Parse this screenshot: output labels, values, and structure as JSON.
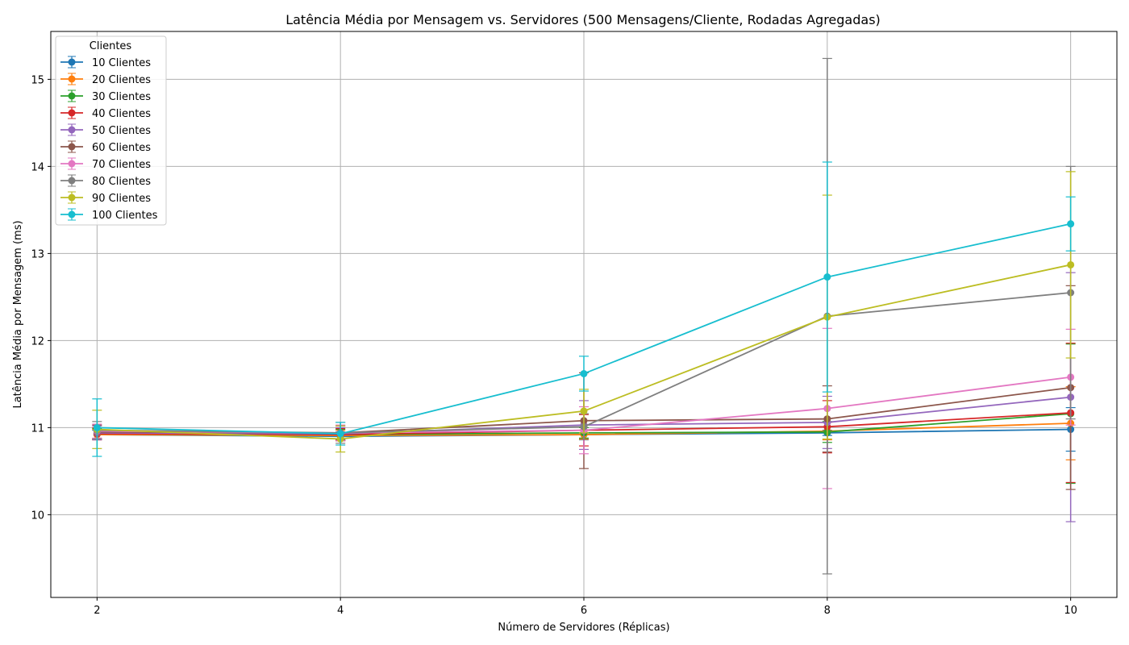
{
  "chart_data": {
    "type": "line",
    "title": "Latência Média por Mensagem vs. Servidores (500 Mensagens/Cliente, Rodadas Agregadas)",
    "xlabel": "Número de Servidores (Réplicas)",
    "ylabel": "Latência Média por Mensagem (ms)",
    "x": [
      2,
      4,
      6,
      8,
      10
    ],
    "xlim": [
      1.62,
      10.38
    ],
    "ylim": [
      9.05,
      15.55
    ],
    "xticks": [
      2,
      4,
      6,
      8,
      10
    ],
    "yticks": [
      10,
      11,
      12,
      13,
      14,
      15
    ],
    "grid": true,
    "legend": {
      "title": "Clientes",
      "position": "upper-left"
    },
    "series": [
      {
        "name": "10 Clientes",
        "color": "#1f77b4",
        "values": [
          10.92,
          10.9,
          10.92,
          10.94,
          10.98
        ],
        "errors": [
          0.05,
          0.05,
          0.05,
          0.03,
          0.25
        ]
      },
      {
        "name": "20 Clientes",
        "color": "#ff7f0e",
        "values": [
          10.92,
          10.91,
          10.92,
          10.96,
          11.05
        ],
        "errors": [
          0.06,
          0.06,
          0.05,
          0.1,
          0.42
        ]
      },
      {
        "name": "30 Clientes",
        "color": "#2ca02c",
        "values": [
          10.93,
          10.92,
          10.94,
          10.95,
          11.16
        ],
        "errors": [
          0.06,
          0.06,
          0.06,
          0.12,
          0.8
        ]
      },
      {
        "name": "40 Clientes",
        "color": "#d62728",
        "values": [
          10.93,
          10.92,
          10.97,
          11.01,
          11.17
        ],
        "errors": [
          0.07,
          0.07,
          0.18,
          0.3,
          0.8
        ]
      },
      {
        "name": "50 Clientes",
        "color": "#9467bd",
        "values": [
          10.94,
          10.93,
          11.03,
          11.06,
          11.35
        ],
        "errors": [
          0.08,
          0.07,
          0.28,
          0.3,
          1.43
        ]
      },
      {
        "name": "60 Clientes",
        "color": "#8c564b",
        "values": [
          10.95,
          10.94,
          11.08,
          11.1,
          11.46
        ],
        "errors": [
          0.08,
          0.08,
          0.55,
          0.38,
          1.17
        ]
      },
      {
        "name": "70 Clientes",
        "color": "#e377c2",
        "values": [
          10.96,
          10.94,
          10.97,
          11.22,
          11.58
        ],
        "errors": [
          0.08,
          0.09,
          0.27,
          0.92,
          0.55
        ]
      },
      {
        "name": "80 Clientes",
        "color": "#7f7f7f",
        "values": [
          10.97,
          10.94,
          11.01,
          12.28,
          12.55
        ],
        "errors": [
          0.1,
          0.12,
          0.15,
          2.96,
          1.45
        ]
      },
      {
        "name": "90 Clientes",
        "color": "#bcbd22",
        "values": [
          10.98,
          10.87,
          11.19,
          12.27,
          12.87
        ],
        "errors": [
          0.22,
          0.15,
          0.25,
          1.4,
          1.07
        ]
      },
      {
        "name": "100 Clientes",
        "color": "#17becf",
        "values": [
          11.0,
          10.93,
          11.62,
          12.73,
          13.34
        ],
        "errors": [
          0.33,
          0.13,
          0.2,
          1.32,
          0.31
        ]
      }
    ]
  }
}
